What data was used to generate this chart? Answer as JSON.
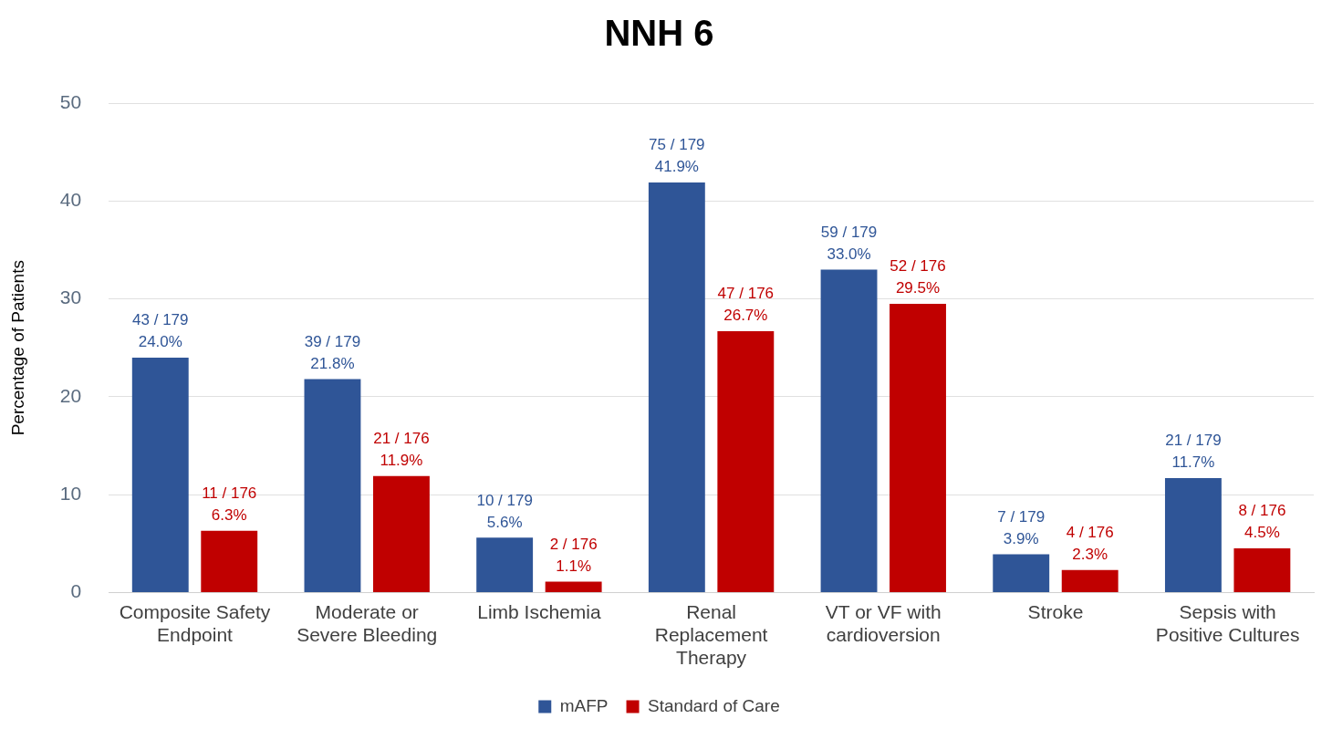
{
  "chart_data": {
    "type": "bar",
    "title": "NNH 6",
    "ylabel": "Percentage of Patients",
    "categories": [
      "Composite Safety Endpoint",
      "Moderate or Severe Bleeding",
      "Limb Ischemia",
      "Renal Replacement Therapy",
      "VT or VF with cardioversion",
      "Stroke",
      "Sepsis with Positive Cultures"
    ],
    "series": [
      {
        "name": "mAFP",
        "color": "#2f5597",
        "values": [
          24.0,
          21.8,
          5.6,
          41.9,
          33.0,
          3.9,
          11.7
        ],
        "value_labels": [
          "43 / 179\n24.0%",
          "39 / 179\n21.8%",
          "10 / 179\n5.6%",
          "75 / 179\n41.9%",
          "59 / 179\n33.0%",
          "7 / 179\n3.9%",
          "21 / 179\n11.7%"
        ]
      },
      {
        "name": "Standard of Care",
        "color": "#c00000",
        "values": [
          6.3,
          11.9,
          1.1,
          26.7,
          29.5,
          2.3,
          4.5
        ],
        "value_labels": [
          "11 / 176\n6.3%",
          "21 / 176\n11.9%",
          "2 / 176\n1.1%",
          "47 / 176\n26.7%",
          "52 / 176\n29.5%",
          "4 / 176\n2.3%",
          "8 / 176\n4.5%"
        ]
      }
    ],
    "ylim": [
      0,
      50
    ],
    "yticks": [
      0,
      10,
      20,
      30,
      40,
      50
    ],
    "grid": "y",
    "legend": "bottom"
  }
}
